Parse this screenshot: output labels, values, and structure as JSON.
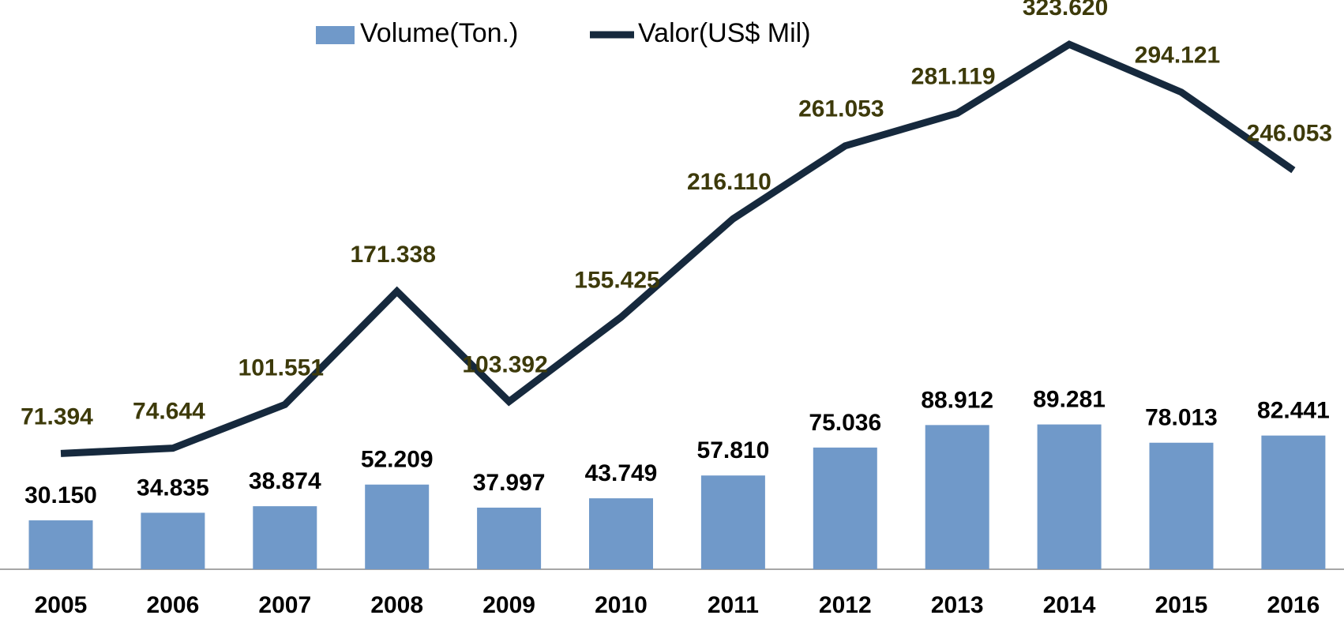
{
  "chart_data": {
    "type": "bar_line",
    "categories": [
      "2005",
      "2006",
      "2007",
      "2008",
      "2009",
      "2010",
      "2011",
      "2012",
      "2013",
      "2014",
      "2015",
      "2016"
    ],
    "series": [
      {
        "name": "Volume(Ton.)",
        "type": "bar",
        "color": "#7099c9",
        "values": [
          30150,
          34835,
          38874,
          52209,
          37997,
          43749,
          57810,
          75036,
          88912,
          89281,
          78013,
          82441
        ],
        "value_labels": [
          "30.150",
          "34.835",
          "38.874",
          "52.209",
          "37.997",
          "43.749",
          "57.810",
          "75.036",
          "88.912",
          "89.281",
          "78.013",
          "82.441"
        ]
      },
      {
        "name": "Valor(US$ Mil)",
        "type": "line",
        "color": "#16293d",
        "values": [
          71394,
          74644,
          101551,
          171338,
          103392,
          155425,
          216110,
          261053,
          281119,
          323620,
          294121,
          246053
        ],
        "value_labels": [
          "71.394",
          "74.644",
          "101.551",
          "171.338",
          "103.392",
          "155.425",
          "216.110",
          "261.053",
          "281.119",
          "323.620",
          "294.121",
          "246.053"
        ]
      }
    ],
    "ylim": [
      0,
      350000
    ],
    "legend": "top"
  }
}
